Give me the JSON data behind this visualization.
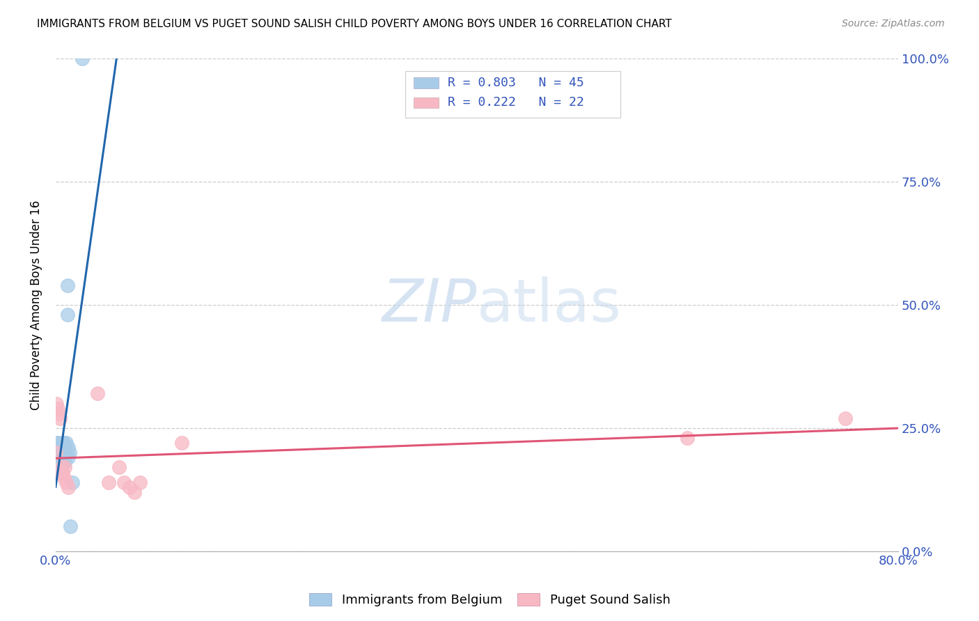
{
  "title": "IMMIGRANTS FROM BELGIUM VS PUGET SOUND SALISH CHILD POVERTY AMONG BOYS UNDER 16 CORRELATION CHART",
  "source": "Source: ZipAtlas.com",
  "ylabel": "Child Poverty Among Boys Under 16",
  "legend_blue_label": "Immigrants from Belgium",
  "legend_pink_label": "Puget Sound Salish",
  "legend_blue_r": "R = 0.803",
  "legend_blue_n": "N = 45",
  "legend_pink_r": "R = 0.222",
  "legend_pink_n": "N = 22",
  "blue_color": "#a8cce8",
  "pink_color": "#f7b8c4",
  "blue_line_color": "#2166ac",
  "pink_line_color": "#e05575",
  "watermark_zip": "ZIP",
  "watermark_atlas": "atlas",
  "blue_scatter_x": [
    0.0,
    0.0,
    0.0,
    0.001,
    0.001,
    0.001,
    0.001,
    0.001,
    0.002,
    0.002,
    0.002,
    0.002,
    0.003,
    0.003,
    0.003,
    0.003,
    0.004,
    0.004,
    0.004,
    0.004,
    0.005,
    0.005,
    0.005,
    0.006,
    0.006,
    0.006,
    0.007,
    0.007,
    0.007,
    0.008,
    0.008,
    0.008,
    0.009,
    0.009,
    0.009,
    0.01,
    0.01,
    0.011,
    0.011,
    0.012,
    0.012,
    0.013,
    0.014,
    0.016,
    0.025
  ],
  "blue_scatter_y": [
    0.17,
    0.18,
    0.2,
    0.19,
    0.2,
    0.21,
    0.22,
    0.17,
    0.18,
    0.19,
    0.2,
    0.21,
    0.2,
    0.19,
    0.22,
    0.17,
    0.2,
    0.19,
    0.21,
    0.18,
    0.19,
    0.2,
    0.21,
    0.22,
    0.19,
    0.18,
    0.21,
    0.2,
    0.18,
    0.22,
    0.2,
    0.19,
    0.21,
    0.2,
    0.18,
    0.22,
    0.2,
    0.48,
    0.54,
    0.21,
    0.19,
    0.2,
    0.05,
    0.14,
    1.0
  ],
  "pink_scatter_x": [
    0.0,
    0.001,
    0.002,
    0.003,
    0.004,
    0.005,
    0.006,
    0.007,
    0.008,
    0.009,
    0.01,
    0.012,
    0.04,
    0.05,
    0.06,
    0.065,
    0.07,
    0.075,
    0.08,
    0.12,
    0.6,
    0.75
  ],
  "pink_scatter_y": [
    0.2,
    0.3,
    0.29,
    0.28,
    0.27,
    0.16,
    0.17,
    0.16,
    0.15,
    0.17,
    0.14,
    0.13,
    0.32,
    0.14,
    0.17,
    0.14,
    0.13,
    0.12,
    0.14,
    0.22,
    0.23,
    0.27
  ],
  "xlim": [
    0.0,
    0.8
  ],
  "ylim": [
    0.0,
    1.0
  ],
  "xticks": [
    0.0,
    0.2,
    0.4,
    0.6,
    0.8
  ],
  "yticks": [
    0.0,
    0.25,
    0.5,
    0.75,
    1.0
  ],
  "right_ytick_labels": [
    "0.0%",
    "25.0%",
    "50.0%",
    "75.0%",
    "100.0%"
  ]
}
